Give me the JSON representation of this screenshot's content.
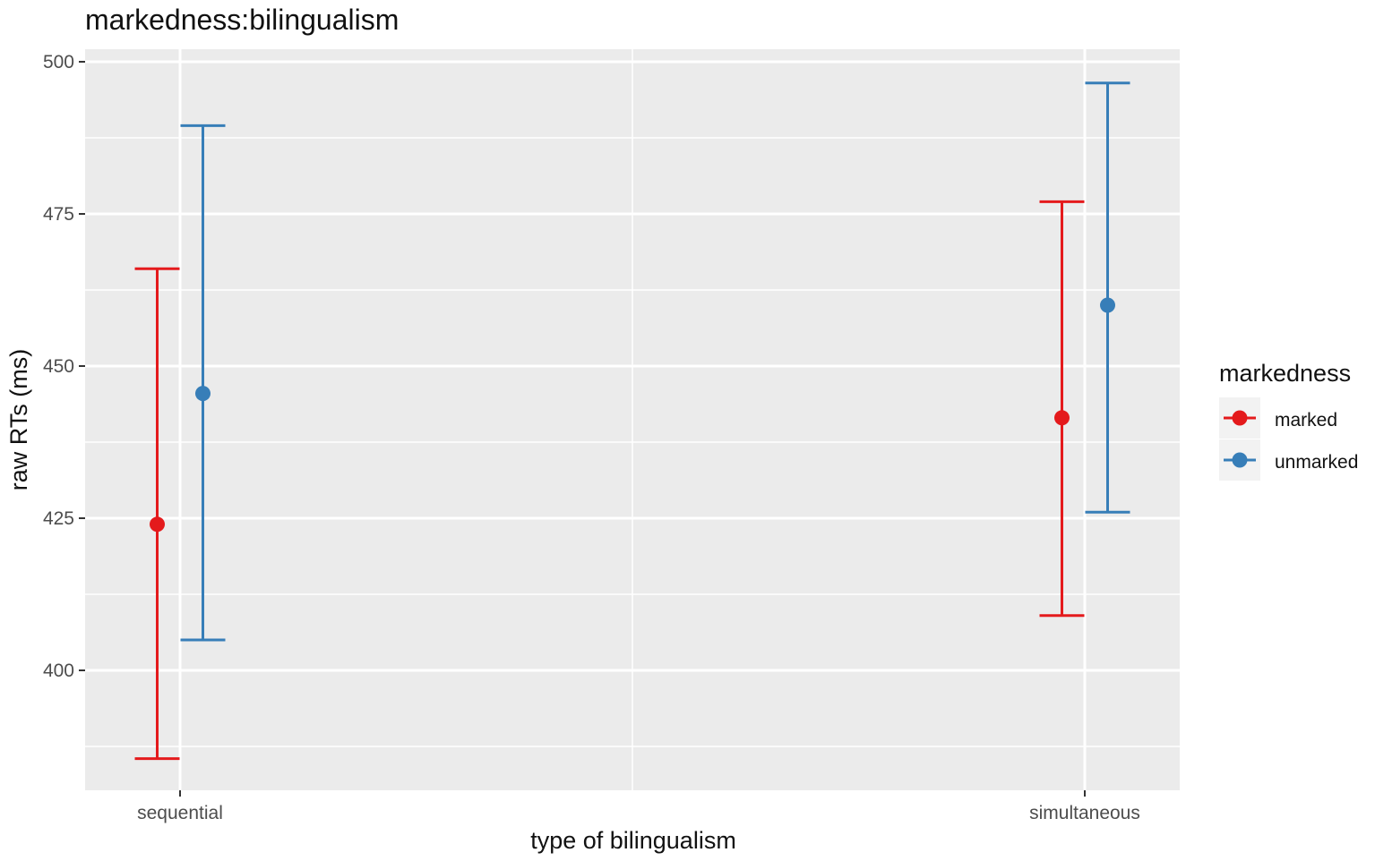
{
  "chart_data": {
    "type": "scatter",
    "title": "markedness:bilingualism",
    "xlabel": "type of bilingualism",
    "ylabel": "raw RTs (ms)",
    "categories": [
      "sequential",
      "simultaneous"
    ],
    "ylim": [
      380,
      501.5
    ],
    "yticks": [
      400,
      425,
      450,
      475,
      500
    ],
    "grid": true,
    "legend": {
      "title": "markedness",
      "position": "right"
    },
    "series": [
      {
        "name": "marked",
        "color": "#e41a1c",
        "values": [
          424,
          441.5
        ],
        "lower": [
          385.5,
          409
        ],
        "upper": [
          466,
          477
        ]
      },
      {
        "name": "unmarked",
        "color": "#377eb8",
        "values": [
          445.5,
          460
        ],
        "lower": [
          405,
          426
        ],
        "upper": [
          489.5,
          496.5
        ]
      }
    ]
  }
}
